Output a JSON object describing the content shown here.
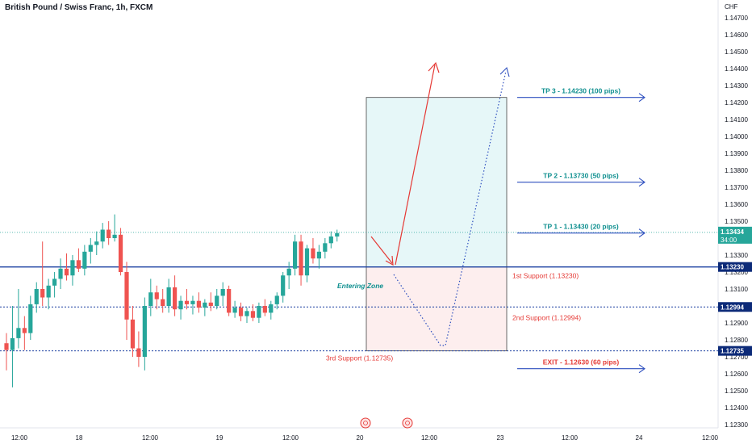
{
  "header": {
    "title": "British Pound / Swiss Franc, 1h, FXCM"
  },
  "chart_data": {
    "type": "candlestick",
    "currency": "CHF",
    "ylim": [
      1.1225,
      1.1478
    ],
    "yticks": [
      1.147,
      1.146,
      1.145,
      1.144,
      1.143,
      1.142,
      1.141,
      1.14,
      1.139,
      1.138,
      1.137,
      1.136,
      1.135,
      1.134,
      1.133,
      1.132,
      1.131,
      1.13,
      1.129,
      1.128,
      1.127,
      1.126,
      1.125,
      1.124,
      1.123
    ],
    "xticks": [
      "12:00",
      "18",
      "12:00",
      "19",
      "12:00",
      "20",
      "12:00",
      "23",
      "12:00",
      "24",
      "12:00"
    ],
    "candles": [
      [
        1.1278,
        1.1284,
        1.1262,
        1.1274
      ],
      [
        1.1274,
        1.13,
        1.1252,
        1.1281
      ],
      [
        1.1281,
        1.131,
        1.1275,
        1.1287
      ],
      [
        1.1287,
        1.1294,
        1.1274,
        1.1284
      ],
      [
        1.1284,
        1.1306,
        1.128,
        1.1301
      ],
      [
        1.1301,
        1.1314,
        1.1296,
        1.131
      ],
      [
        1.131,
        1.1338,
        1.13,
        1.1305
      ],
      [
        1.1305,
        1.1316,
        1.1298,
        1.1312
      ],
      [
        1.1312,
        1.132,
        1.1305,
        1.1316
      ],
      [
        1.1316,
        1.1328,
        1.131,
        1.1322
      ],
      [
        1.1322,
        1.1331,
        1.1315,
        1.1318
      ],
      [
        1.1318,
        1.133,
        1.1312,
        1.1327
      ],
      [
        1.1327,
        1.1334,
        1.132,
        1.1322
      ],
      [
        1.1322,
        1.1336,
        1.1318,
        1.1332
      ],
      [
        1.1332,
        1.134,
        1.1325,
        1.1336
      ],
      [
        1.1336,
        1.1344,
        1.133,
        1.1338
      ],
      [
        1.1338,
        1.1349,
        1.1334,
        1.1345
      ],
      [
        1.1345,
        1.135,
        1.1336,
        1.134
      ],
      [
        1.134,
        1.1354,
        1.1338,
        1.1342
      ],
      [
        1.1342,
        1.1346,
        1.1318,
        1.132
      ],
      [
        1.132,
        1.1326,
        1.128,
        1.1292
      ],
      [
        1.1292,
        1.13,
        1.127,
        1.1275
      ],
      [
        1.1275,
        1.1285,
        1.1264,
        1.127
      ],
      [
        1.127,
        1.1305,
        1.1262,
        1.13
      ],
      [
        1.13,
        1.1316,
        1.1294,
        1.1308
      ],
      [
        1.1308,
        1.1312,
        1.1298,
        1.1304
      ],
      [
        1.1304,
        1.131,
        1.1296,
        1.13
      ],
      [
        1.13,
        1.1316,
        1.1296,
        1.1311
      ],
      [
        1.1311,
        1.1318,
        1.1294,
        1.1298
      ],
      [
        1.1298,
        1.1306,
        1.1292,
        1.1303
      ],
      [
        1.1303,
        1.131,
        1.1298,
        1.1301
      ],
      [
        1.1301,
        1.1306,
        1.1295,
        1.1303
      ],
      [
        1.1303,
        1.1308,
        1.1296,
        1.1299
      ],
      [
        1.1299,
        1.1304,
        1.1294,
        1.1302
      ],
      [
        1.1302,
        1.1308,
        1.1297,
        1.13
      ],
      [
        1.13,
        1.131,
        1.1298,
        1.1306
      ],
      [
        1.1306,
        1.1314,
        1.13,
        1.131
      ],
      [
        1.131,
        1.1312,
        1.1294,
        1.1296
      ],
      [
        1.1296,
        1.1303,
        1.1293,
        1.1299
      ],
      [
        1.1299,
        1.1302,
        1.1291,
        1.1294
      ],
      [
        1.1294,
        1.1299,
        1.129,
        1.1297
      ],
      [
        1.1297,
        1.1301,
        1.1291,
        1.1293
      ],
      [
        1.1293,
        1.1302,
        1.129,
        1.13
      ],
      [
        1.13,
        1.1304,
        1.1294,
        1.1296
      ],
      [
        1.1296,
        1.1303,
        1.1292,
        1.1301
      ],
      [
        1.1301,
        1.1308,
        1.1298,
        1.1306
      ],
      [
        1.1306,
        1.132,
        1.1302,
        1.1318
      ],
      [
        1.1318,
        1.1326,
        1.131,
        1.1322
      ],
      [
        1.1322,
        1.1342,
        1.1318,
        1.1338
      ],
      [
        1.1338,
        1.1342,
        1.1312,
        1.1318
      ],
      [
        1.1318,
        1.1336,
        1.1314,
        1.1334
      ],
      [
        1.1334,
        1.134,
        1.1325,
        1.1328
      ],
      [
        1.1328,
        1.1336,
        1.1322,
        1.1332
      ],
      [
        1.1332,
        1.134,
        1.1328,
        1.1337
      ],
      [
        1.1337,
        1.1344,
        1.1334,
        1.1341
      ],
      [
        1.1341,
        1.1345,
        1.1338,
        1.1343
      ]
    ],
    "price_levels": [
      {
        "label": "1st Support  (1.13230)",
        "price": 1.1323,
        "axis_label": "1.13230",
        "style": "solid",
        "color": "#1a3fa0"
      },
      {
        "label": "2nd Support (1.12994)",
        "price": 1.12994,
        "axis_label": "1.12994",
        "style": "dotted",
        "color": "#1a3fa0"
      },
      {
        "label": "3rd Support (1.12735)",
        "price": 1.12735,
        "axis_label": "1.12735",
        "style": "dotted",
        "color": "#1a3fa0"
      }
    ],
    "current_price": {
      "value": "1.13434",
      "countdown": "34:00",
      "price": 1.13434,
      "color": "#26a69a"
    },
    "targets": [
      {
        "label": "TP 3 - 1.14230 (100 pips)",
        "price": 1.1423,
        "color": "#0e8f8f"
      },
      {
        "label": "TP 2 - 1.13730 (50 pips)",
        "price": 1.1373,
        "color": "#0e8f8f"
      },
      {
        "label": "TP 1 - 1.13430 (20 pips)",
        "price": 1.1343,
        "color": "#0e8f8f"
      },
      {
        "label": "EXIT - 1.12630 (60 pips)",
        "price": 1.1263,
        "color": "#e53935"
      }
    ],
    "position_box": {
      "entry": 1.1323,
      "target": 1.1423,
      "stop": 1.12735
    },
    "annotations": {
      "entering_zone": "Entering Zone"
    },
    "colors": {
      "up": "#26a69a",
      "down": "#ef5350",
      "profit_fill": "#e6f7f8",
      "loss_fill": "#fdeeee",
      "arrow_red": "#e53935",
      "arrow_blue": "#2e4fbf"
    }
  }
}
